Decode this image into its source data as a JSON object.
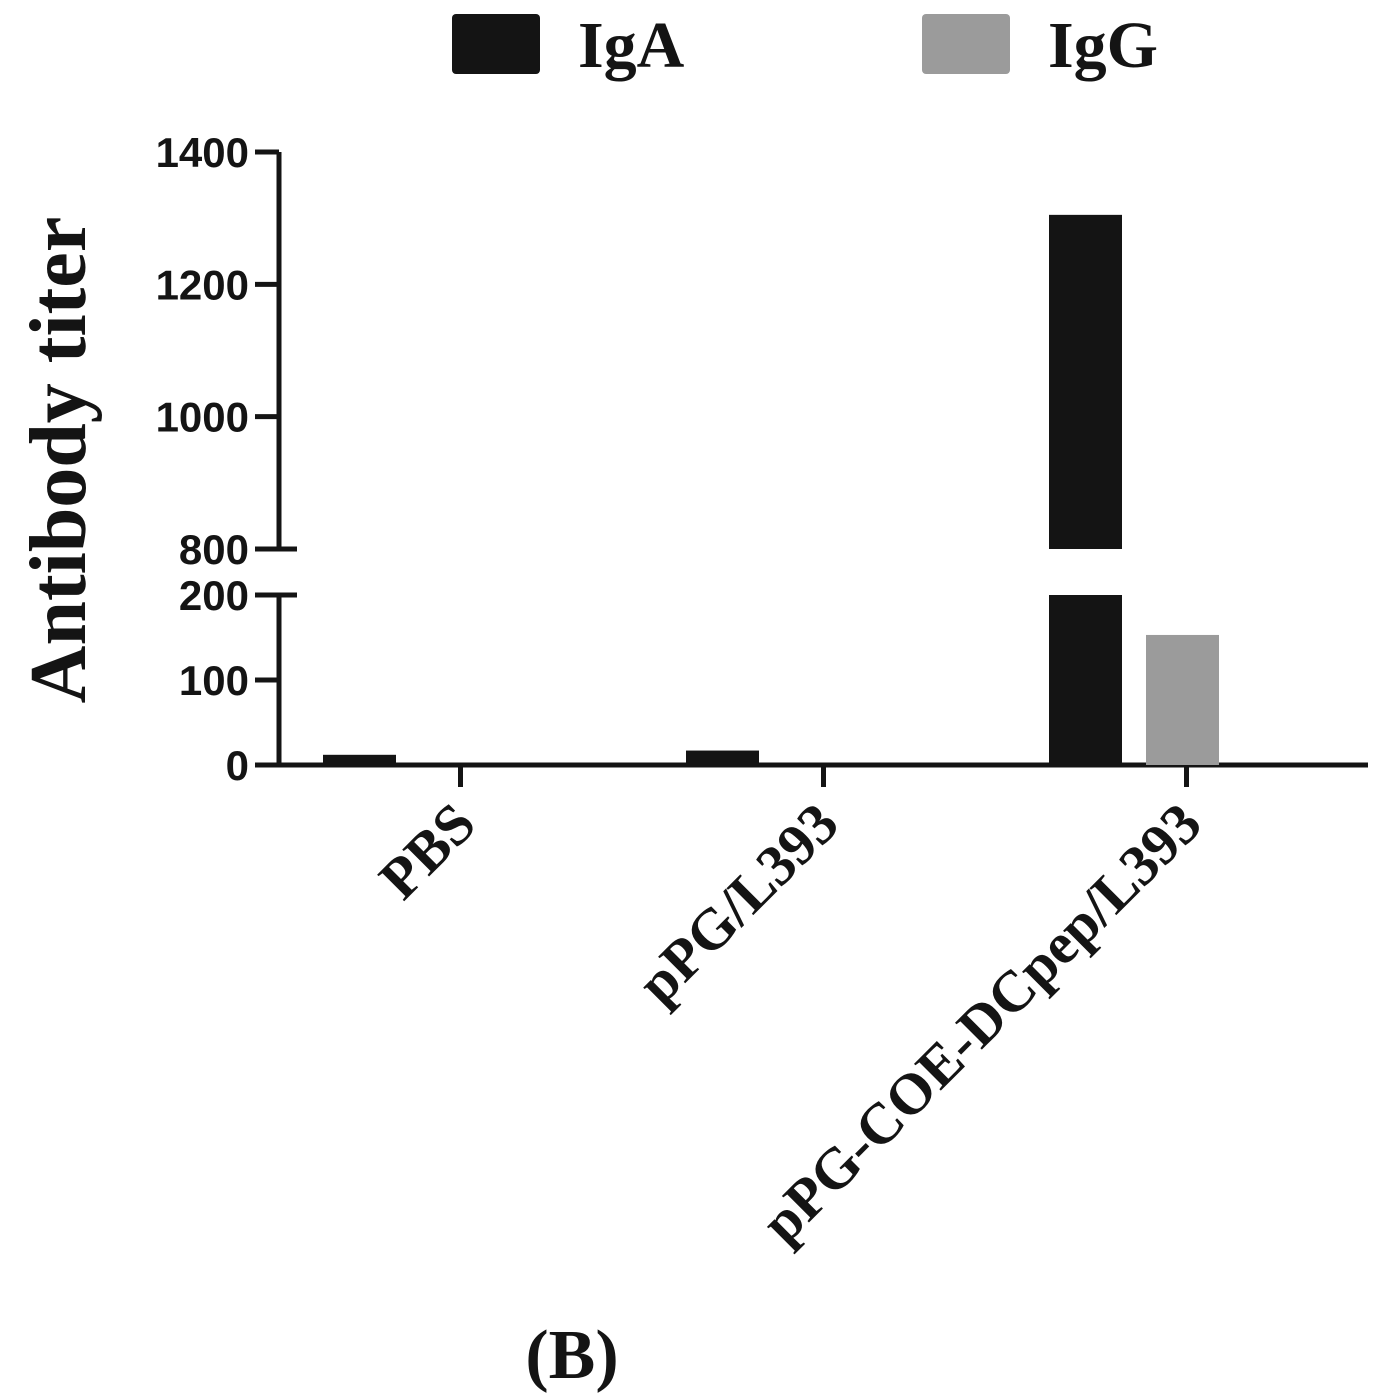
{
  "chart_data": {
    "type": "bar",
    "panel_label": "(B)",
    "ylabel": "Antibody titer",
    "categories": [
      "PBS",
      "pPG/L393",
      "pPG-COE-DCpep/L393"
    ],
    "series": [
      {
        "name": "IgA",
        "color": "#141414",
        "values": [
          12,
          17,
          1305
        ]
      },
      {
        "name": "IgG",
        "color": "#9b9b9b",
        "values": [
          0,
          0,
          153
        ]
      }
    ],
    "y_axis": {
      "broken": true,
      "lower_segment": {
        "range": [
          0,
          200
        ],
        "ticks": [
          0,
          100,
          200
        ]
      },
      "upper_segment": {
        "range": [
          800,
          1400
        ],
        "ticks": [
          800,
          1000,
          1200,
          1400
        ]
      }
    },
    "legend_position": "top",
    "grid": false
  }
}
